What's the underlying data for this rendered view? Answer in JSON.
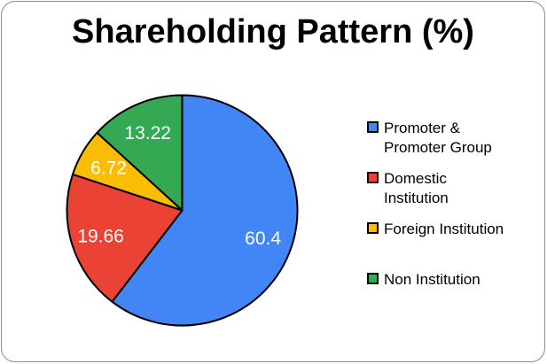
{
  "chart_data": {
    "type": "pie",
    "title": "Shareholding Pattern (%)",
    "direction": "clockwise",
    "start_angle_deg": 0,
    "stroke_color": "#000000",
    "label_color": "#ffffff",
    "legend_position": "right",
    "total": 100,
    "slices": [
      {
        "label": "Promoter & Promoter Group",
        "legend_lines": [
          "Promoter &",
          "Promoter Group"
        ],
        "value": 60.4,
        "display": "60.4",
        "color": "#4285F4"
      },
      {
        "label": "Domestic Institution",
        "legend_lines": [
          "Domestic",
          "Institution"
        ],
        "value": 19.66,
        "display": "19.66",
        "color": "#EA4335"
      },
      {
        "label": "Foreign Institution",
        "legend_lines": [
          "Foreign Institution"
        ],
        "value": 6.72,
        "display": "6.72",
        "color": "#FBBC04"
      },
      {
        "label": "Non Institution",
        "legend_lines": [
          "Non Institution"
        ],
        "value": 13.22,
        "display": "13.22",
        "color": "#34A853"
      }
    ]
  }
}
